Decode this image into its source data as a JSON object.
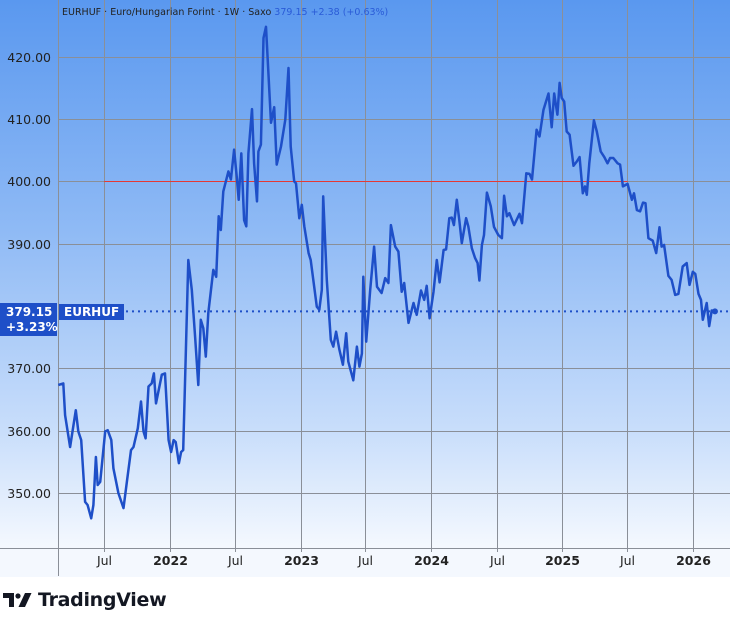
{
  "legend": {
    "symbol": "EURHUF",
    "name": "Euro/Hungarian Forint",
    "interval": "1W",
    "source": "Saxo",
    "sep": "·",
    "last": "379.15",
    "change": "+2.38 (+0.63%)"
  },
  "price_tag": {
    "price": "379.15",
    "change_pct": "+3.23%",
    "symbol": "EURHUF"
  },
  "logo": {
    "text": "TradingView"
  },
  "colors": {
    "line": "#1e4fc8",
    "reference_line": "#e53935",
    "grid": "#8a8f98"
  },
  "chart_data": {
    "type": "line",
    "title": "",
    "xlabel": "",
    "ylabel": "",
    "xlim": [
      "2021-02-25",
      "2026-04-14"
    ],
    "ylim": [
      341.2,
      429.1
    ],
    "grid": true,
    "y_ticks": [
      "420.00",
      "410.00",
      "400.00",
      "390.00",
      "370.00",
      "360.00",
      "350.00"
    ],
    "x_ticks": [
      {
        "date": "2021-07-01",
        "label": "Jul"
      },
      {
        "date": "2022-01-01",
        "label": "2022"
      },
      {
        "date": "2022-07-01",
        "label": "Jul"
      },
      {
        "date": "2023-01-01",
        "label": "2023"
      },
      {
        "date": "2023-07-01",
        "label": "Jul"
      },
      {
        "date": "2024-01-01",
        "label": "2024"
      },
      {
        "date": "2024-07-01",
        "label": "Jul"
      },
      {
        "date": "2025-01-01",
        "label": "2025"
      },
      {
        "date": "2025-07-01",
        "label": "Jul"
      },
      {
        "date": "2026-01-01",
        "label": "2026"
      }
    ],
    "reference_line": {
      "value": 400,
      "from": "2021-07-01",
      "to": "2025-07-02"
    },
    "last_value_line": 379.15,
    "series": [
      {
        "values": [
          [
            "2021-02-23",
            367.35
          ],
          [
            "2021-03-09",
            367.6
          ],
          [
            "2021-03-14",
            362.5
          ],
          [
            "2021-03-28",
            357.4
          ],
          [
            "2021-04-13",
            363.3
          ],
          [
            "2021-04-20",
            359.9
          ],
          [
            "2021-04-28",
            358.5
          ],
          [
            "2021-05-09",
            348.6
          ],
          [
            "2021-05-16",
            348.1
          ],
          [
            "2021-05-26",
            345.96
          ],
          [
            "2021-06-01",
            348.1
          ],
          [
            "2021-06-08",
            355.8
          ],
          [
            "2021-06-13",
            351.3
          ],
          [
            "2021-06-20",
            351.8
          ],
          [
            "2021-07-04",
            359.9
          ],
          [
            "2021-07-11",
            360.1
          ],
          [
            "2021-07-21",
            358.5
          ],
          [
            "2021-07-27",
            354.0
          ],
          [
            "2021-08-10",
            350.0
          ],
          [
            "2021-08-24",
            347.6
          ],
          [
            "2021-09-02",
            351.6
          ],
          [
            "2021-09-14",
            356.9
          ],
          [
            "2021-09-21",
            357.4
          ],
          [
            "2021-10-03",
            360.4
          ],
          [
            "2021-10-12",
            364.7
          ],
          [
            "2021-10-19",
            359.9
          ],
          [
            "2021-10-25",
            358.8
          ],
          [
            "2021-11-02",
            367.1
          ],
          [
            "2021-11-11",
            367.6
          ],
          [
            "2021-11-17",
            369.2
          ],
          [
            "2021-11-23",
            364.4
          ],
          [
            "2021-12-09",
            369.0
          ],
          [
            "2021-12-18",
            369.2
          ],
          [
            "2021-12-28",
            358.5
          ],
          [
            "2022-01-04",
            356.6
          ],
          [
            "2022-01-11",
            358.5
          ],
          [
            "2022-01-17",
            358.2
          ],
          [
            "2022-01-26",
            354.8
          ],
          [
            "2022-02-01",
            356.6
          ],
          [
            "2022-02-07",
            356.9
          ],
          [
            "2022-02-21",
            387.4
          ],
          [
            "2022-03-03",
            382.6
          ],
          [
            "2022-03-12",
            375.1
          ],
          [
            "2022-03-21",
            367.35
          ],
          [
            "2022-03-28",
            377.8
          ],
          [
            "2022-04-04",
            376.45
          ],
          [
            "2022-04-11",
            371.9
          ],
          [
            "2022-04-18",
            378.9
          ],
          [
            "2022-05-02",
            385.8
          ],
          [
            "2022-05-10",
            384.7
          ],
          [
            "2022-05-17",
            394.4
          ],
          [
            "2022-05-23",
            392.2
          ],
          [
            "2022-05-30",
            398.4
          ],
          [
            "2022-06-13",
            401.6
          ],
          [
            "2022-06-20",
            400.3
          ],
          [
            "2022-06-29",
            405.1
          ],
          [
            "2022-07-07",
            400.3
          ],
          [
            "2022-07-12",
            397.05
          ],
          [
            "2022-07-19",
            404.5
          ],
          [
            "2022-07-27",
            393.8
          ],
          [
            "2022-08-02",
            392.8
          ],
          [
            "2022-08-08",
            404.5
          ],
          [
            "2022-08-18",
            411.6
          ],
          [
            "2022-08-24",
            402.9
          ],
          [
            "2022-09-01",
            396.8
          ],
          [
            "2022-09-05",
            404.8
          ],
          [
            "2022-09-12",
            405.9
          ],
          [
            "2022-09-19",
            423.0
          ],
          [
            "2022-09-26",
            424.8
          ],
          [
            "2022-10-10",
            409.4
          ],
          [
            "2022-10-19",
            411.9
          ],
          [
            "2022-10-26",
            402.7
          ],
          [
            "2022-11-07",
            405.6
          ],
          [
            "2022-11-19",
            409.9
          ],
          [
            "2022-11-28",
            418.2
          ],
          [
            "2022-12-04",
            405.6
          ],
          [
            "2022-12-14",
            400.0
          ],
          [
            "2022-12-19",
            399.7
          ],
          [
            "2022-12-28",
            394.1
          ],
          [
            "2023-01-04",
            396.25
          ],
          [
            "2023-01-11",
            392.8
          ],
          [
            "2023-01-23",
            388.5
          ],
          [
            "2023-01-29",
            387.4
          ],
          [
            "2023-02-15",
            379.9
          ],
          [
            "2023-02-22",
            379.4
          ],
          [
            "2023-03-01",
            382.6
          ],
          [
            "2023-03-05",
            397.6
          ],
          [
            "2023-03-15",
            384.2
          ],
          [
            "2023-03-26",
            374.6
          ],
          [
            "2023-04-02",
            373.5
          ],
          [
            "2023-04-10",
            375.9
          ],
          [
            "2023-04-19",
            373.0
          ],
          [
            "2023-04-29",
            370.6
          ],
          [
            "2023-05-08",
            375.65
          ],
          [
            "2023-05-14",
            371.1
          ],
          [
            "2023-05-28",
            368.1
          ],
          [
            "2023-06-07",
            373.5
          ],
          [
            "2023-06-14",
            370.3
          ],
          [
            "2023-06-21",
            372.4
          ],
          [
            "2023-06-25",
            384.7
          ],
          [
            "2023-07-03",
            374.3
          ],
          [
            "2023-07-14",
            382.6
          ],
          [
            "2023-07-25",
            389.55
          ],
          [
            "2023-08-02",
            383.1
          ],
          [
            "2023-08-15",
            382.1
          ],
          [
            "2023-08-25",
            384.5
          ],
          [
            "2023-09-03",
            383.7
          ],
          [
            "2023-09-10",
            393.0
          ],
          [
            "2023-09-22",
            389.55
          ],
          [
            "2023-10-01",
            388.75
          ],
          [
            "2023-10-10",
            382.3
          ],
          [
            "2023-10-17",
            383.7
          ],
          [
            "2023-10-29",
            377.3
          ],
          [
            "2023-11-12",
            380.5
          ],
          [
            "2023-11-21",
            378.6
          ],
          [
            "2023-12-03",
            382.5
          ],
          [
            "2023-12-12",
            381.0
          ],
          [
            "2023-12-19",
            383.25
          ],
          [
            "2023-12-27",
            378.05
          ],
          [
            "2024-01-07",
            382.3
          ],
          [
            "2024-01-16",
            387.4
          ],
          [
            "2024-01-24",
            383.8
          ],
          [
            "2024-02-04",
            389.0
          ],
          [
            "2024-02-11",
            389.1
          ],
          [
            "2024-02-20",
            394.1
          ],
          [
            "2024-02-27",
            394.2
          ],
          [
            "2024-03-04",
            393.0
          ],
          [
            "2024-03-12",
            397.05
          ],
          [
            "2024-03-19",
            393.8
          ],
          [
            "2024-03-26",
            390.1
          ],
          [
            "2024-04-07",
            394.1
          ],
          [
            "2024-04-13",
            392.8
          ],
          [
            "2024-04-23",
            389.3
          ],
          [
            "2024-05-02",
            387.7
          ],
          [
            "2024-05-09",
            386.9
          ],
          [
            "2024-05-14",
            384.1
          ],
          [
            "2024-05-21",
            389.8
          ],
          [
            "2024-05-27",
            391.4
          ],
          [
            "2024-06-04",
            398.2
          ],
          [
            "2024-06-15",
            396.0
          ],
          [
            "2024-06-24",
            392.7
          ],
          [
            "2024-07-06",
            391.4
          ],
          [
            "2024-07-16",
            390.9
          ],
          [
            "2024-07-22",
            397.7
          ],
          [
            "2024-07-30",
            394.4
          ],
          [
            "2024-08-06",
            394.9
          ],
          [
            "2024-08-19",
            393.0
          ],
          [
            "2024-09-03",
            394.8
          ],
          [
            "2024-09-10",
            393.3
          ],
          [
            "2024-09-22",
            401.3
          ],
          [
            "2024-10-01",
            401.2
          ],
          [
            "2024-10-08",
            400.3
          ],
          [
            "2024-10-21",
            408.3
          ],
          [
            "2024-10-29",
            407.2
          ],
          [
            "2024-11-09",
            411.5
          ],
          [
            "2024-11-23",
            414.1
          ],
          [
            "2024-12-02",
            408.7
          ],
          [
            "2024-12-09",
            414.1
          ],
          [
            "2024-12-18",
            410.7
          ],
          [
            "2024-12-24",
            415.8
          ],
          [
            "2024-12-30",
            413.4
          ],
          [
            "2025-01-06",
            412.8
          ],
          [
            "2025-01-13",
            408.0
          ],
          [
            "2025-01-21",
            407.5
          ],
          [
            "2025-02-01",
            402.5
          ],
          [
            "2025-02-10",
            403.2
          ],
          [
            "2025-02-18",
            403.9
          ],
          [
            "2025-02-27",
            398.1
          ],
          [
            "2025-03-05",
            399.2
          ],
          [
            "2025-03-10",
            397.85
          ],
          [
            "2025-03-17",
            402.9
          ],
          [
            "2025-03-30",
            409.8
          ],
          [
            "2025-04-07",
            408.0
          ],
          [
            "2025-04-18",
            404.8
          ],
          [
            "2025-04-28",
            403.9
          ],
          [
            "2025-05-07",
            402.9
          ],
          [
            "2025-05-14",
            403.75
          ],
          [
            "2025-05-23",
            403.75
          ],
          [
            "2025-06-04",
            402.9
          ],
          [
            "2025-06-11",
            402.7
          ],
          [
            "2025-06-19",
            399.2
          ],
          [
            "2025-07-02",
            399.6
          ],
          [
            "2025-07-14",
            397.05
          ],
          [
            "2025-07-20",
            398.1
          ],
          [
            "2025-07-28",
            395.4
          ],
          [
            "2025-08-06",
            395.2
          ],
          [
            "2025-08-14",
            396.6
          ],
          [
            "2025-08-21",
            396.5
          ],
          [
            "2025-08-29",
            390.9
          ],
          [
            "2025-09-10",
            390.5
          ],
          [
            "2025-09-20",
            388.5
          ],
          [
            "2025-09-29",
            392.65
          ],
          [
            "2025-10-05",
            389.55
          ],
          [
            "2025-10-12",
            389.8
          ],
          [
            "2025-10-24",
            384.85
          ],
          [
            "2025-11-02",
            384.2
          ],
          [
            "2025-11-12",
            381.8
          ],
          [
            "2025-11-21",
            381.95
          ],
          [
            "2025-12-03",
            386.35
          ],
          [
            "2025-12-14",
            386.9
          ],
          [
            "2025-12-22",
            383.4
          ],
          [
            "2025-12-31",
            385.5
          ],
          [
            "2026-01-07",
            385.15
          ],
          [
            "2026-01-16",
            381.95
          ],
          [
            "2026-01-23",
            381.0
          ],
          [
            "2026-01-28",
            377.8
          ],
          [
            "2026-02-08",
            380.5
          ],
          [
            "2026-02-15",
            376.8
          ],
          [
            "2026-02-22",
            379.3
          ],
          [
            "2026-03-03",
            379.15
          ]
        ]
      }
    ]
  }
}
